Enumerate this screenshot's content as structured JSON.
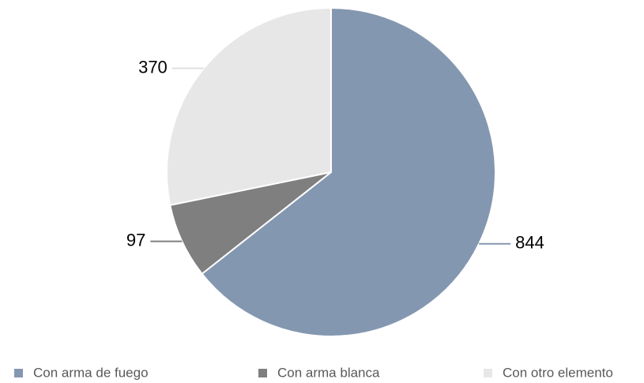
{
  "chart_data": {
    "type": "pie",
    "categories": [
      "Con arma de fuego",
      "Con arma blanca",
      "Con otro elemento"
    ],
    "values": [
      844,
      97,
      370
    ],
    "colors": [
      "#8497b0",
      "#7f7f7f",
      "#e7e7e7"
    ],
    "legend": "bottom"
  }
}
